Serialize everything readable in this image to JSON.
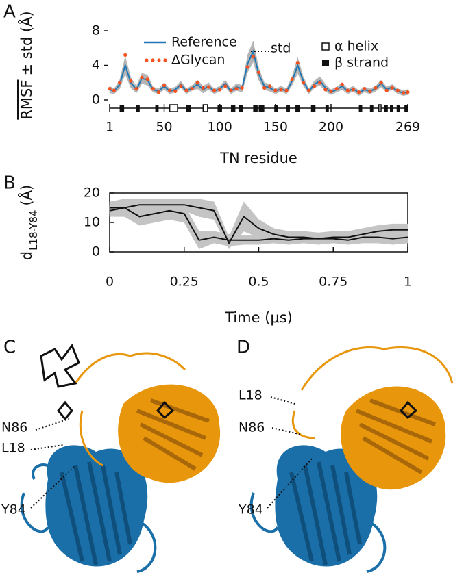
{
  "chart_data": [
    {
      "type": "line",
      "panel": "A",
      "xlabel": "TN residue",
      "ylabel": [
        "RMSF",
        "± std (Å)"
      ],
      "x": [
        1,
        5,
        10,
        15,
        20,
        25,
        30,
        35,
        40,
        45,
        50,
        55,
        60,
        65,
        70,
        75,
        80,
        85,
        90,
        95,
        100,
        105,
        110,
        115,
        120,
        125,
        130,
        135,
        140,
        145,
        150,
        155,
        160,
        165,
        170,
        175,
        180,
        185,
        190,
        195,
        200,
        205,
        210,
        215,
        220,
        225,
        230,
        235,
        240,
        245,
        250,
        255,
        260,
        265,
        269
      ],
      "xlim": [
        1,
        269
      ],
      "xticks": [
        1,
        50,
        100,
        150,
        200,
        269
      ],
      "ylim": [
        0,
        8
      ],
      "yticks": [
        0,
        4,
        8
      ],
      "frame": false,
      "band_color": "#b5b5b5",
      "std_label": "std",
      "series": [
        {
          "name": "Reference",
          "color": "#1f77b4",
          "style": "line",
          "values": [
            1.2,
            1.0,
            1.8,
            4.0,
            2.0,
            1.2,
            2.5,
            2.3,
            1.2,
            1.0,
            1.6,
            1.0,
            1.2,
            1.8,
            1.0,
            1.4,
            1.8,
            1.2,
            1.6,
            1.0,
            1.3,
            1.9,
            1.0,
            1.5,
            1.3,
            4.2,
            5.6,
            3.0,
            1.6,
            1.4,
            1.0,
            1.3,
            1.0,
            2.2,
            4.0,
            2.2,
            1.0,
            1.8,
            2.2,
            1.4,
            0.9,
            1.2,
            1.6,
            1.0,
            1.3,
            0.8,
            1.2,
            1.0,
            1.3,
            1.9,
            1.2,
            1.5,
            1.0,
            0.8,
            0.9
          ],
          "std": [
            0.4,
            0.3,
            0.5,
            1.0,
            0.6,
            0.4,
            0.6,
            0.6,
            0.3,
            0.3,
            0.4,
            0.3,
            0.3,
            0.4,
            0.3,
            0.3,
            0.5,
            0.4,
            0.4,
            0.3,
            0.3,
            0.4,
            0.3,
            0.4,
            0.4,
            1.0,
            1.2,
            0.7,
            0.4,
            0.4,
            0.3,
            0.3,
            0.3,
            0.5,
            0.9,
            0.5,
            0.3,
            0.4,
            0.5,
            0.4,
            0.3,
            0.3,
            0.4,
            0.3,
            0.3,
            0.3,
            0.3,
            0.3,
            0.3,
            0.4,
            0.3,
            0.3,
            0.3,
            0.3,
            0.3
          ]
        },
        {
          "name": "ΔGlycan",
          "color": "#f4511e",
          "style": "dots",
          "values": [
            1.3,
            1.1,
            2.0,
            5.2,
            2.2,
            1.3,
            2.6,
            2.4,
            1.3,
            0.9,
            1.7,
            1.1,
            1.0,
            1.6,
            1.1,
            1.3,
            2.0,
            1.4,
            1.5,
            1.1,
            1.2,
            1.6,
            1.1,
            1.3,
            1.4,
            3.8,
            5.0,
            3.2,
            1.4,
            1.6,
            1.1,
            1.2,
            1.1,
            2.4,
            4.3,
            2.0,
            1.1,
            1.6,
            2.0,
            1.2,
            1.0,
            1.3,
            1.8,
            1.1,
            1.2,
            0.9,
            1.3,
            1.0,
            1.4,
            2.0,
            1.1,
            1.4,
            1.1,
            0.8,
            0.9
          ]
        }
      ],
      "secondary_structure": {
        "helix_label": "α helix",
        "strand_label": "β strand",
        "helices": [
          [
            55,
            62
          ],
          [
            85,
            89
          ],
          [
            243,
            245
          ]
        ],
        "strands": [
          [
            10,
            14
          ],
          [
            25,
            28
          ],
          [
            42,
            45
          ],
          [
            70,
            74
          ],
          [
            98,
            102
          ],
          [
            110,
            114
          ],
          [
            117,
            121
          ],
          [
            130,
            134
          ],
          [
            135,
            140
          ],
          [
            149,
            152
          ],
          [
            160,
            163
          ],
          [
            168,
            172
          ],
          [
            182,
            186
          ],
          [
            195,
            198
          ],
          [
            225,
            228
          ],
          [
            235,
            238
          ],
          [
            248,
            251
          ],
          [
            253,
            256
          ],
          [
            259,
            262
          ],
          [
            266,
            269
          ]
        ]
      }
    },
    {
      "type": "line",
      "panel": "B",
      "xlabel": "Time (μs)",
      "ylabel": [
        "d",
        "L18-Y84",
        "(Å)"
      ],
      "x": [
        0,
        0.05,
        0.1,
        0.15,
        0.2,
        0.25,
        0.3,
        0.35,
        0.4,
        0.45,
        0.5,
        0.55,
        0.6,
        0.65,
        0.7,
        0.75,
        0.8,
        0.85,
        0.9,
        0.95,
        1
      ],
      "xlim": [
        0,
        1
      ],
      "xticks": [
        0,
        0.25,
        0.5,
        0.75,
        1
      ],
      "ylim": [
        0,
        20
      ],
      "yticks": [
        0,
        10,
        20
      ],
      "frame": true,
      "band_color": "#c4c4c4",
      "series": [
        {
          "color": "#111111",
          "style": "line",
          "values": [
            14,
            15,
            12,
            13,
            14,
            13,
            4,
            5,
            4,
            4,
            4,
            4.5,
            4,
            4.5,
            4.5,
            4.5,
            4,
            5,
            5,
            4.5,
            5
          ],
          "std": [
            2,
            3,
            3,
            3,
            3,
            3,
            3,
            2,
            2,
            1.5,
            1.5,
            1.5,
            1.5,
            1.5,
            1.5,
            1.5,
            1.5,
            2,
            2,
            2,
            2
          ]
        },
        {
          "color": "#111111",
          "style": "line",
          "values": [
            15,
            15,
            16,
            16,
            16,
            16,
            15,
            14,
            3,
            12,
            8,
            6,
            5,
            5,
            4.5,
            5,
            5,
            6,
            7,
            7.5,
            7.5
          ],
          "std": [
            2,
            3,
            2,
            2,
            2,
            2,
            3,
            3,
            2,
            5,
            3,
            2,
            2,
            2,
            2,
            2,
            2,
            2,
            2,
            2,
            2
          ]
        }
      ]
    }
  ],
  "panels": [
    {
      "label": "C",
      "residue_labels": [
        "N86",
        "L18",
        "Y84"
      ]
    },
    {
      "label": "D",
      "residue_labels": [
        "L18",
        "N86",
        "Y84"
      ]
    }
  ]
}
